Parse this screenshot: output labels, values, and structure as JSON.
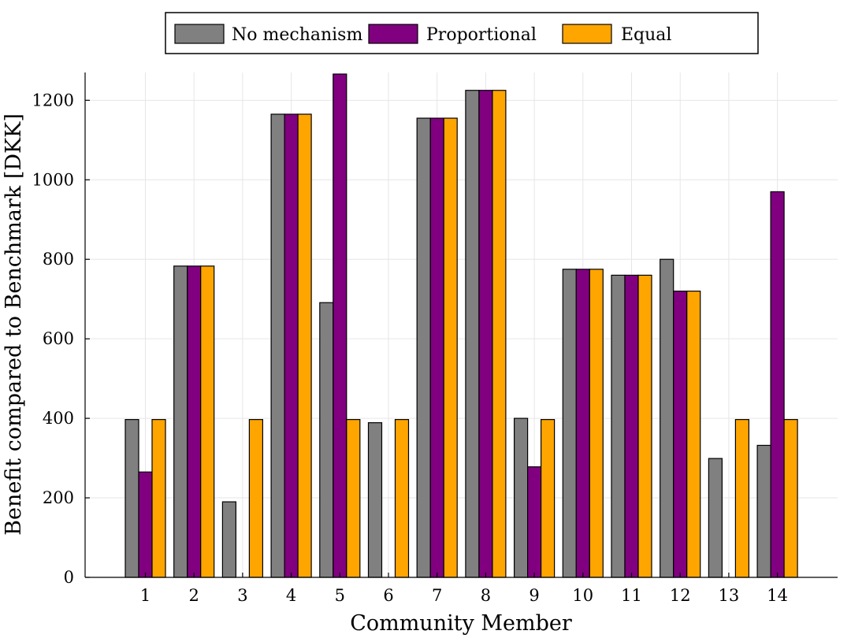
{
  "chart_data": {
    "type": "bar",
    "xlabel": "Community Member",
    "ylabel": "Benefit compared to Benchmark [DKK]",
    "categories": [
      "1",
      "2",
      "3",
      "4",
      "5",
      "6",
      "7",
      "8",
      "9",
      "10",
      "11",
      "12",
      "13",
      "14"
    ],
    "ylim": [
      0,
      1270
    ],
    "yticks": [
      0,
      200,
      400,
      600,
      800,
      1000,
      1200
    ],
    "grid": true,
    "legend_position": "top-center",
    "series": [
      {
        "name": "No mechanism",
        "color": "#808080",
        "values": [
          397,
          783,
          190,
          1165,
          691,
          389,
          1155,
          1225,
          400,
          775,
          760,
          800,
          299,
          332
        ]
      },
      {
        "name": "Proportional",
        "color": "#800080",
        "values": [
          265,
          783,
          0,
          1165,
          1266,
          0,
          1155,
          1225,
          278,
          775,
          760,
          720,
          0,
          970
        ]
      },
      {
        "name": "Equal",
        "color": "#FFA500",
        "values": [
          397,
          783,
          397,
          1165,
          397,
          397,
          1155,
          1225,
          397,
          775,
          760,
          720,
          397,
          397
        ]
      }
    ]
  }
}
